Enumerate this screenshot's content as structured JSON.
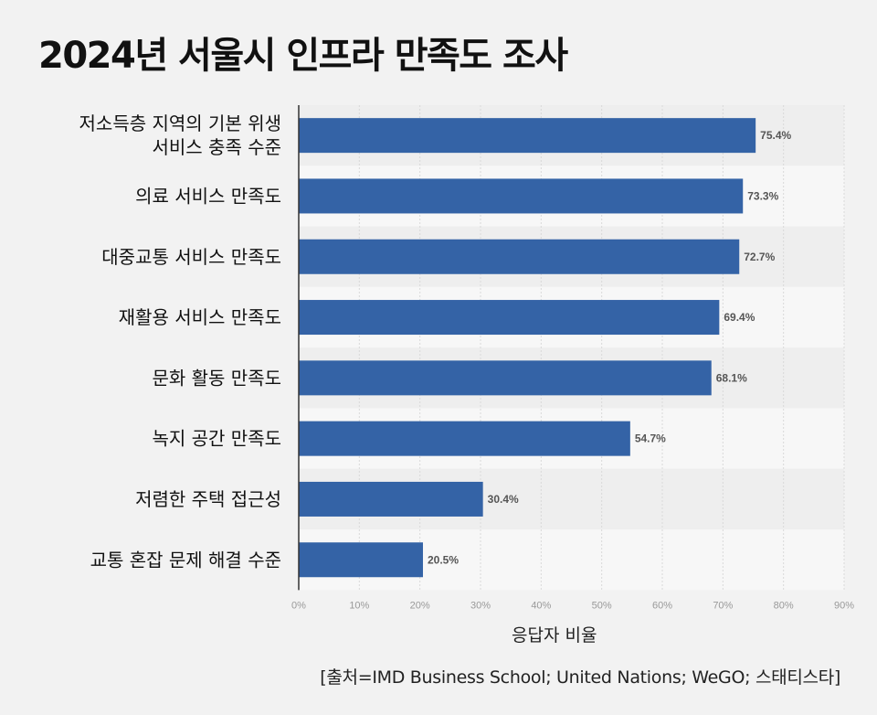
{
  "title": "2024년 서울시 인프라 만족도 조사",
  "source": "[출처=IMD Business School; United Nations; WeGO; 스태티스타]",
  "colors": {
    "bar": "#3463a6",
    "band_light": "#f7f7f7",
    "band_dark": "#eeeeee",
    "grid": "#d9d9d9"
  },
  "chart_data": {
    "type": "bar",
    "orientation": "horizontal",
    "title": "2024년 서울시 인프라 만족도 조사",
    "xlabel": "응답자 비율",
    "ylabel": "",
    "xlim": [
      0,
      90
    ],
    "ticks": [
      0,
      10,
      20,
      30,
      40,
      50,
      60,
      70,
      80,
      90
    ],
    "tick_suffix": "%",
    "grid": true,
    "categories": [
      [
        "저소득층 지역의 기본 위생",
        "서비스 충족 수준"
      ],
      [
        "의료 서비스 만족도"
      ],
      [
        "대중교통 서비스 만족도"
      ],
      [
        "재활용 서비스 만족도"
      ],
      [
        "문화 활동 만족도"
      ],
      [
        "녹지 공간 만족도"
      ],
      [
        "저렴한 주택 접근성"
      ],
      [
        "교통 혼잡 문제 해결 수준"
      ]
    ],
    "values": [
      75.4,
      73.3,
      72.7,
      69.4,
      68.1,
      54.7,
      30.4,
      20.5
    ],
    "value_labels": [
      "75.4%",
      "73.3%",
      "72.7%",
      "69.4%",
      "68.1%",
      "54.7%",
      "30.4%",
      "20.5%"
    ]
  }
}
